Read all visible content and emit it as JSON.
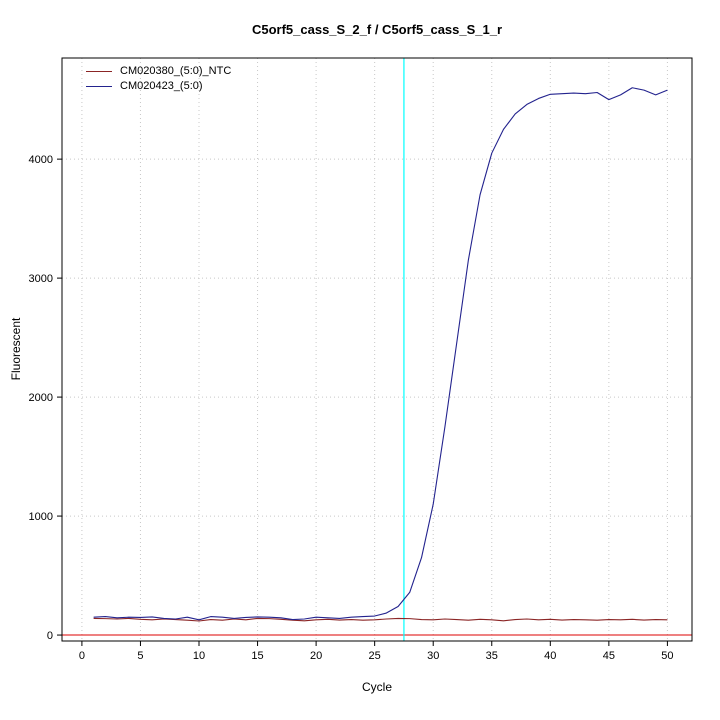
{
  "chart_data": {
    "type": "line",
    "title": "C5orf5_cass_S_2_f / C5orf5_cass_S_1_r",
    "xlabel": "Cycle",
    "ylabel": "Fluorescent",
    "xlim": [
      -1.7,
      52.1
    ],
    "ylim": [
      -50,
      4850
    ],
    "xticks": [
      0,
      5,
      10,
      15,
      20,
      25,
      30,
      35,
      40,
      45,
      50
    ],
    "yticks": [
      0,
      1000,
      2000,
      3000,
      4000
    ],
    "grid": true,
    "legend_position": "top-left",
    "x": [
      1,
      2,
      3,
      4,
      5,
      6,
      7,
      8,
      9,
      10,
      11,
      12,
      13,
      14,
      15,
      16,
      17,
      18,
      19,
      20,
      21,
      22,
      23,
      24,
      25,
      26,
      27,
      28,
      29,
      30,
      31,
      32,
      33,
      34,
      35,
      36,
      37,
      38,
      39,
      40,
      41,
      42,
      43,
      44,
      45,
      46,
      47,
      48,
      49,
      50
    ],
    "series": [
      {
        "name": "CM020380_(5:0)_NTC",
        "color": "#8b2525",
        "values": [
          140,
          138,
          135,
          140,
          132,
          128,
          135,
          130,
          125,
          118,
          130,
          125,
          135,
          128,
          140,
          138,
          132,
          125,
          120,
          128,
          132,
          126,
          130,
          125,
          128,
          135,
          140,
          138,
          130,
          128,
          135,
          130,
          125,
          132,
          128,
          120,
          130,
          135,
          128,
          132,
          126,
          130,
          128,
          125,
          130,
          128,
          132,
          126,
          130,
          128
        ]
      },
      {
        "name": "CM020423_(5:0)",
        "color": "#23238e",
        "values": [
          150,
          155,
          145,
          150,
          148,
          152,
          140,
          135,
          150,
          128,
          155,
          150,
          140,
          148,
          152,
          150,
          145,
          130,
          135,
          150,
          145,
          140,
          150,
          155,
          160,
          185,
          240,
          360,
          650,
          1100,
          1750,
          2450,
          3150,
          3700,
          4050,
          4250,
          4380,
          4460,
          4510,
          4545,
          4550,
          4555,
          4550,
          4560,
          4500,
          4540,
          4600,
          4580,
          4540,
          4580
        ]
      }
    ],
    "threshold_line": {
      "y": 0,
      "color": "#dd0000"
    },
    "ct_line": {
      "x": 27.5,
      "color": "#00ffff"
    },
    "grid_color": "#c8c8c8",
    "axis_color": "#000000"
  }
}
